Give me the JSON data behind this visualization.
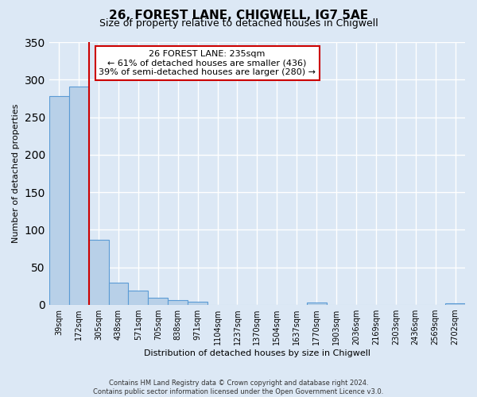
{
  "title": "26, FOREST LANE, CHIGWELL, IG7 5AE",
  "subtitle": "Size of property relative to detached houses in Chigwell",
  "xlabel": "Distribution of detached houses by size in Chigwell",
  "ylabel": "Number of detached properties",
  "bin_labels": [
    "39sqm",
    "172sqm",
    "305sqm",
    "438sqm",
    "571sqm",
    "705sqm",
    "838sqm",
    "971sqm",
    "1104sqm",
    "1237sqm",
    "1370sqm",
    "1504sqm",
    "1637sqm",
    "1770sqm",
    "1903sqm",
    "2036sqm",
    "2169sqm",
    "2303sqm",
    "2436sqm",
    "2569sqm",
    "2702sqm"
  ],
  "bar_values": [
    278,
    291,
    87,
    30,
    19,
    9,
    6,
    4,
    0,
    0,
    0,
    0,
    0,
    3,
    0,
    0,
    0,
    0,
    0,
    0,
    2
  ],
  "bar_color": "#b8d0e8",
  "bar_edge_color": "#5b9bd5",
  "property_line_bin": 1,
  "annotation_title": "26 FOREST LANE: 235sqm",
  "annotation_line1": "← 61% of detached houses are smaller (436)",
  "annotation_line2": "39% of semi-detached houses are larger (280) →",
  "annotation_box_color": "#ffffff",
  "annotation_box_edge": "#cc0000",
  "vertical_line_color": "#cc0000",
  "footer1": "Contains HM Land Registry data © Crown copyright and database right 2024.",
  "footer2": "Contains public sector information licensed under the Open Government Licence v3.0.",
  "ylim": [
    0,
    350
  ],
  "background_color": "#dce8f5",
  "grid_color": "#ffffff"
}
